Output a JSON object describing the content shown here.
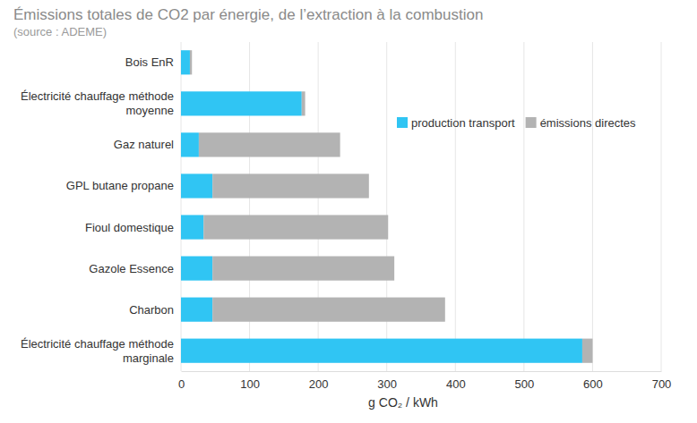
{
  "chart_data": {
    "type": "bar",
    "orientation": "horizontal",
    "stacked": true,
    "title": "Émissions totales de CO2 par énergie, de l’extraction à la combustion",
    "subtitle": "(source : ADEME)",
    "x_label": "g CO₂ / kWh",
    "categories": [
      "Bois EnR",
      "Électricité chauffage méthode moyenne",
      "Gaz naturel",
      "GPL butane propane",
      "Fioul domestique",
      "Gazole Essence",
      "Charbon",
      "Électricité chauffage méthode marginale"
    ],
    "series": [
      {
        "name": "production transport",
        "color": "#30c5f3",
        "values": [
          13,
          176,
          26,
          46,
          33,
          46,
          46,
          585
        ]
      },
      {
        "name": "émissions directes",
        "color": "#b3b3b3",
        "values": [
          3,
          5,
          206,
          228,
          269,
          265,
          339,
          15
        ]
      }
    ],
    "xlim": [
      0,
      700
    ],
    "xticks": [
      0,
      100,
      200,
      300,
      400,
      500,
      600,
      700
    ],
    "grid": true,
    "legend": "top-right"
  }
}
